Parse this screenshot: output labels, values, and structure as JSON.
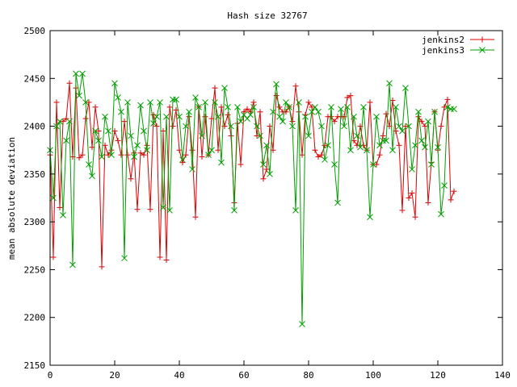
{
  "chart_data": {
    "type": "line",
    "title": "Hash size 32767",
    "xlabel": "",
    "ylabel": "mean absolute deviation",
    "xlim": [
      0,
      140
    ],
    "ylim": [
      2150,
      2500
    ],
    "xticks": [
      0,
      20,
      40,
      60,
      80,
      100,
      120,
      140
    ],
    "yticks": [
      2150,
      2200,
      2250,
      2300,
      2350,
      2400,
      2450,
      2500
    ],
    "grid": false,
    "legend_position": "top-right",
    "series": [
      {
        "name": "jenkins2",
        "color": "#dd0000",
        "marker": "plus",
        "x": [
          0,
          1,
          2,
          3,
          4,
          5,
          6,
          7,
          8,
          9,
          10,
          11,
          12,
          13,
          14,
          15,
          16,
          17,
          18,
          19,
          20,
          21,
          22,
          23,
          24,
          25,
          26,
          27,
          28,
          29,
          30,
          31,
          32,
          33,
          34,
          35,
          36,
          37,
          38,
          39,
          40,
          41,
          42,
          43,
          44,
          45,
          46,
          47,
          48,
          49,
          50,
          51,
          52,
          53,
          54,
          55,
          56,
          57,
          58,
          59,
          60,
          61,
          62,
          63,
          64,
          65,
          66,
          67,
          68,
          69,
          70,
          71,
          72,
          73,
          74,
          75,
          76,
          77,
          78,
          79,
          80,
          81,
          82,
          83,
          84,
          85,
          86,
          87,
          88,
          89,
          90,
          91,
          92,
          93,
          94,
          95,
          96,
          97,
          98,
          99,
          100,
          101,
          102,
          103,
          104,
          105,
          106,
          107,
          108,
          109,
          110,
          111,
          112,
          113,
          114,
          115,
          116,
          117,
          118,
          119,
          120,
          121,
          122,
          123,
          124,
          125
        ],
        "values": [
          2370,
          2263,
          2425,
          2315,
          2405,
          2408,
          2445,
          2368,
          2440,
          2367,
          2370,
          2408,
          2425,
          2378,
          2420,
          2395,
          2253,
          2380,
          2370,
          2375,
          2395,
          2385,
          2370,
          2405,
          2370,
          2345,
          2372,
          2313,
          2372,
          2370,
          2380,
          2313,
          2412,
          2400,
          2263,
          2395,
          2260,
          2420,
          2400,
          2417,
          2375,
          2362,
          2370,
          2410,
          2375,
          2305,
          2420,
          2368,
          2410,
          2370,
          2408,
          2440,
          2375,
          2420,
          2400,
          2412,
          2390,
          2320,
          2403,
          2360,
          2415,
          2418,
          2415,
          2425,
          2390,
          2415,
          2345,
          2355,
          2400,
          2375,
          2432,
          2420,
          2415,
          2415,
          2420,
          2405,
          2442,
          2415,
          2370,
          2412,
          2425,
          2420,
          2375,
          2368,
          2370,
          2380,
          2410,
          2410,
          2405,
          2410,
          2410,
          2410,
          2430,
          2432,
          2385,
          2380,
          2400,
          2380,
          2375,
          2425,
          2360,
          2360,
          2370,
          2390,
          2413,
          2400,
          2427,
          2395,
          2380,
          2312,
          2400,
          2325,
          2330,
          2305,
          2410,
          2405,
          2400,
          2320,
          2362,
          2415,
          2375,
          2400,
          2420,
          2428,
          2323,
          2332
        ]
      },
      {
        "name": "jenkins3",
        "color": "#00a000",
        "marker": "cross",
        "x": [
          0,
          1,
          2,
          3,
          4,
          5,
          6,
          7,
          8,
          9,
          10,
          11,
          12,
          13,
          14,
          15,
          16,
          17,
          18,
          19,
          20,
          21,
          22,
          23,
          24,
          25,
          26,
          27,
          28,
          29,
          30,
          31,
          32,
          33,
          34,
          35,
          36,
          37,
          38,
          39,
          40,
          41,
          42,
          43,
          44,
          45,
          46,
          47,
          48,
          49,
          50,
          51,
          52,
          53,
          54,
          55,
          56,
          57,
          58,
          59,
          60,
          61,
          62,
          63,
          64,
          65,
          66,
          67,
          68,
          69,
          70,
          71,
          72,
          73,
          74,
          75,
          76,
          77,
          78,
          79,
          80,
          81,
          82,
          83,
          84,
          85,
          86,
          87,
          88,
          89,
          90,
          91,
          92,
          93,
          94,
          95,
          96,
          97,
          98,
          99,
          100,
          101,
          102,
          103,
          104,
          105,
          106,
          107,
          108,
          109,
          110,
          111,
          112,
          113,
          114,
          115,
          116,
          117,
          118,
          119,
          120,
          121,
          122,
          123,
          124,
          125
        ],
        "values": [
          2375,
          2325,
          2400,
          2405,
          2307,
          2385,
          2405,
          2255,
          2455,
          2432,
          2455,
          2425,
          2360,
          2348,
          2395,
          2385,
          2368,
          2410,
          2395,
          2370,
          2445,
          2430,
          2415,
          2262,
          2425,
          2390,
          2368,
          2380,
          2422,
          2395,
          2375,
          2425,
          2403,
          2410,
          2425,
          2315,
          2410,
          2312,
          2428,
          2428,
          2410,
          2365,
          2400,
          2415,
          2355,
          2430,
          2420,
          2390,
          2425,
          2370,
          2375,
          2425,
          2410,
          2362,
          2440,
          2420,
          2400,
          2312,
          2420,
          2405,
          2412,
          2408,
          2412,
          2420,
          2400,
          2390,
          2360,
          2380,
          2350,
          2415,
          2444,
          2410,
          2405,
          2425,
          2420,
          2400,
          2312,
          2425,
          2193,
          2410,
          2390,
          2415,
          2420,
          2415,
          2400,
          2365,
          2380,
          2420,
          2360,
          2320,
          2418,
          2400,
          2420,
          2375,
          2410,
          2390,
          2378,
          2420,
          2375,
          2305,
          2360,
          2410,
          2380,
          2385,
          2385,
          2445,
          2375,
          2420,
          2400,
          2395,
          2440,
          2400,
          2355,
          2380,
          2415,
          2385,
          2378,
          2405,
          2360,
          2415,
          2378,
          2308,
          2338,
          2420,
          2418,
          2418
        ]
      }
    ]
  }
}
